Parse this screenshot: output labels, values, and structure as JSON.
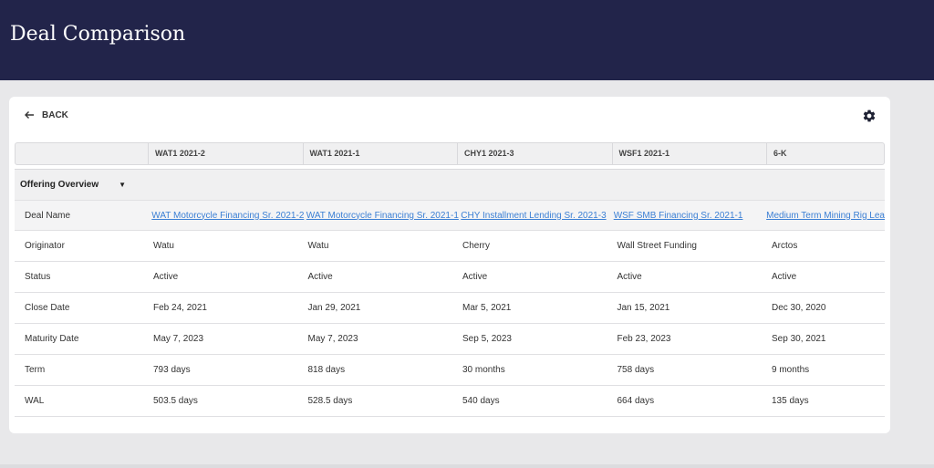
{
  "header": {
    "title": "Deal Comparison"
  },
  "toolbar": {
    "back_label": "BACK",
    "settings_icon": "gear-icon"
  },
  "columns": [
    "",
    "WAT1 2021-2",
    "WAT1 2021-1",
    "CHY1 2021-3",
    "WSF1 2021-1",
    "6-K"
  ],
  "section": {
    "label": "Offering Overview"
  },
  "rows": [
    {
      "label": "Deal Name",
      "values": [
        "WAT Motorcycle Financing Sr. 2021-2",
        "WAT Motorcycle Financing Sr. 2021-1",
        "CHY Installment Lending Sr. 2021-3",
        "WSF SMB Financing Sr. 2021-1",
        "Medium Term Mining Rig Lea"
      ]
    },
    {
      "label": "Originator",
      "values": [
        "Watu",
        "Watu",
        "Cherry",
        "Wall Street Funding",
        "Arctos"
      ]
    },
    {
      "label": "Status",
      "values": [
        "Active",
        "Active",
        "Active",
        "Active",
        "Active"
      ]
    },
    {
      "label": "Close Date",
      "values": [
        "Feb 24, 2021",
        "Jan 29, 2021",
        "Mar 5, 2021",
        "Jan 15, 2021",
        "Dec 30, 2020"
      ]
    },
    {
      "label": "Maturity Date",
      "values": [
        "May 7, 2023",
        "May 7, 2023",
        "Sep 5, 2023",
        "Feb 23, 2023",
        "Sep 30, 2021"
      ]
    },
    {
      "label": "Term",
      "values": [
        "793 days",
        "818 days",
        "30 months",
        "758 days",
        "9 months"
      ]
    },
    {
      "label": "WAL",
      "values": [
        "503.5 days",
        "528.5 days",
        "540 days",
        "664 days",
        "135 days"
      ]
    }
  ],
  "colors": {
    "header_bg": "#22244a",
    "link": "#3b7fd4"
  }
}
